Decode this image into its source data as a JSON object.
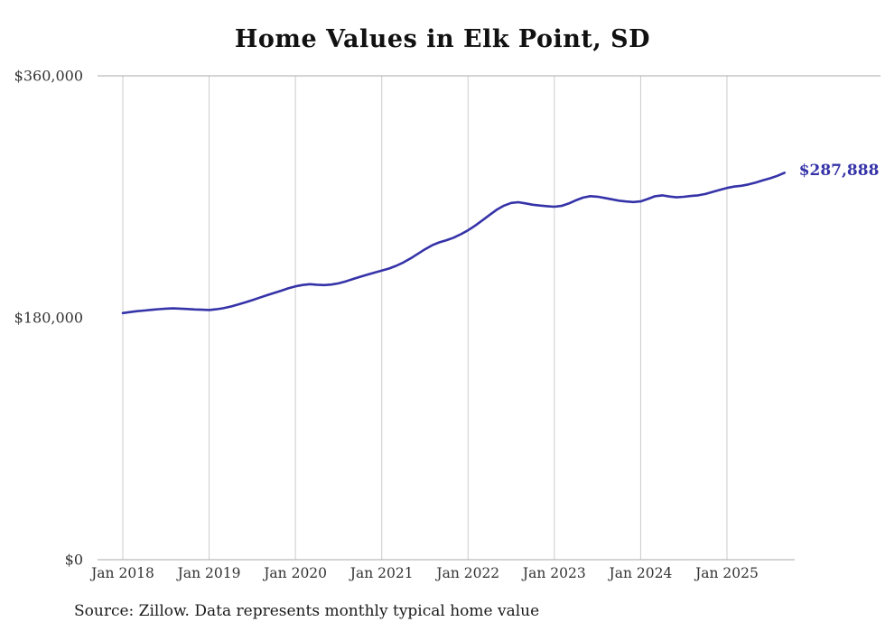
{
  "chart_data": {
    "type": "line",
    "title": "Home Values in Elk Point, SD",
    "series_name": "Monthly typical home value",
    "start_month": "2018-01",
    "end_month": "2025-09",
    "x_tick_labels": [
      "Jan 2018",
      "Jan 2019",
      "Jan 2020",
      "Jan 2021",
      "Jan 2022",
      "Jan 2023",
      "Jan 2024",
      "Jan 2025"
    ],
    "y_ticks": [
      {
        "value": 0,
        "label": "$0"
      },
      {
        "value": 180000,
        "label": "$180,000"
      },
      {
        "value": 360000,
        "label": "$360,000"
      }
    ],
    "ylim": [
      0,
      360000
    ],
    "end_label": "$287,888",
    "end_value": 287888,
    "line_color": "#3533a8",
    "grid_color": "#cccccc",
    "axis_color": "#aaaaaa",
    "tick_text_color": "#333333",
    "grid": "vertical-only",
    "legend": "none",
    "values": [
      183500,
      184200,
      184900,
      185400,
      185900,
      186400,
      186800,
      187000,
      186800,
      186500,
      186200,
      186000,
      185800,
      186300,
      187100,
      188300,
      189800,
      191400,
      193100,
      194900,
      196700,
      198400,
      200100,
      201900,
      203400,
      204400,
      205000,
      204600,
      204300,
      204700,
      205600,
      207100,
      208800,
      210500,
      212100,
      213600,
      215100,
      216600,
      218600,
      221100,
      224100,
      227500,
      230900,
      233900,
      236100,
      237700,
      239600,
      242100,
      245100,
      248600,
      252500,
      256500,
      260400,
      263400,
      265400,
      266000,
      265100,
      264100,
      263500,
      263000,
      262600,
      263200,
      265000,
      267400,
      269400,
      270500,
      270100,
      269100,
      268100,
      267100,
      266500,
      266100,
      266600,
      268400,
      270400,
      271100,
      270200,
      269600,
      270000,
      270600,
      271100,
      272100,
      273600,
      275100,
      276600,
      277600,
      278200,
      279200,
      280600,
      282200,
      283800,
      285600,
      287888
    ]
  },
  "footer": {
    "source": "Source: Zillow. Data represents monthly typical home value"
  }
}
